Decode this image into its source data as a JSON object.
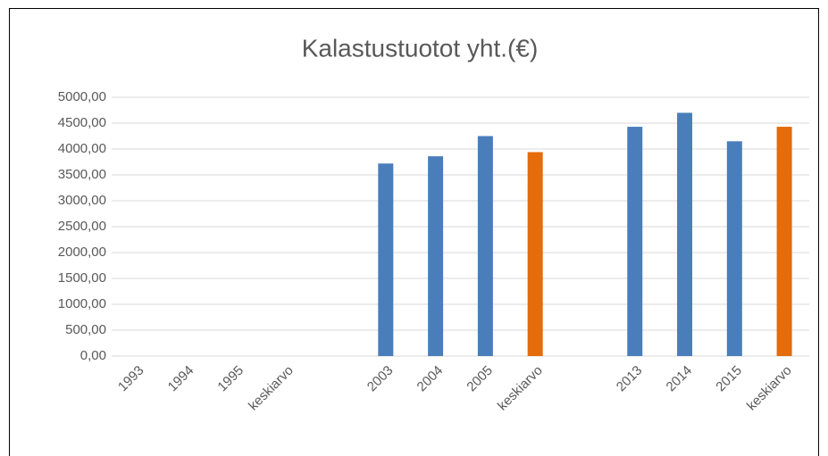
{
  "chart_data": {
    "type": "bar",
    "title": "Kalastustuotot yht.(€)",
    "categories": [
      "1993",
      "1994",
      "1995",
      "keskiarvo",
      null,
      "2003",
      "2004",
      "2005",
      "keskiarvo",
      null,
      "2013",
      "2014",
      "2015",
      "keskiarvo"
    ],
    "values": [
      null,
      null,
      null,
      null,
      null,
      3720,
      3860,
      4250,
      3940,
      null,
      4430,
      4700,
      4150,
      4430
    ],
    "colors": [
      null,
      null,
      null,
      null,
      null,
      "#4a7ebb",
      "#4a7ebb",
      "#4a7ebb",
      "#e46c0a",
      null,
      "#4a7ebb",
      "#4a7ebb",
      "#4a7ebb",
      "#e46c0a"
    ],
    "ylim": [
      0,
      5000
    ],
    "yticks": [
      {
        "value": 0,
        "label": "0,00"
      },
      {
        "value": 500,
        "label": "500,00"
      },
      {
        "value": 1000,
        "label": "1000,00"
      },
      {
        "value": 1500,
        "label": "1500,00"
      },
      {
        "value": 2000,
        "label": "2000,00"
      },
      {
        "value": 2500,
        "label": "2500,00"
      },
      {
        "value": 3000,
        "label": "3000,00"
      },
      {
        "value": 3500,
        "label": "3500,00"
      },
      {
        "value": 4000,
        "label": "4000,00"
      },
      {
        "value": 4500,
        "label": "4500,00"
      },
      {
        "value": 5000,
        "label": "5000,00"
      }
    ],
    "grid": true
  }
}
